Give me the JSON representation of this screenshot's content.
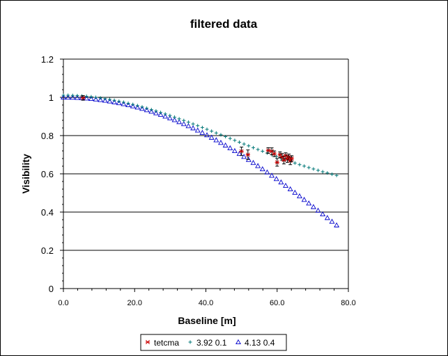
{
  "chart_data": {
    "type": "scatter",
    "title": "filtered data",
    "xlabel": "Baseline [m]",
    "ylabel": "Visibility",
    "xlim": [
      0,
      80
    ],
    "ylim": [
      0,
      1.2
    ],
    "xticks": [
      "0.0",
      "20.0",
      "40.0",
      "60.0",
      "80.0"
    ],
    "yticks": [
      "0",
      "0.2",
      "0.4",
      "0.6",
      "0.8",
      "1",
      "1.2"
    ],
    "grid": "horizontal major lines",
    "legend_position": "bottom",
    "series": [
      {
        "name": "tetcma",
        "marker": "asterisk",
        "color": "#cc0000",
        "errorbar_color": "#000000",
        "points": [
          {
            "x": 5.5,
            "y": 0.997,
            "err": 0.012
          },
          {
            "x": 50.0,
            "y": 0.718,
            "err": 0.022
          },
          {
            "x": 51.8,
            "y": 0.7,
            "err": 0.025
          },
          {
            "x": 57.5,
            "y": 0.722,
            "err": 0.015
          },
          {
            "x": 58.5,
            "y": 0.718,
            "err": 0.018
          },
          {
            "x": 59.2,
            "y": 0.705,
            "err": 0.015
          },
          {
            "x": 60.0,
            "y": 0.66,
            "err": 0.02
          },
          {
            "x": 60.8,
            "y": 0.7,
            "err": 0.015
          },
          {
            "x": 61.4,
            "y": 0.688,
            "err": 0.018
          },
          {
            "x": 61.9,
            "y": 0.672,
            "err": 0.02
          },
          {
            "x": 62.4,
            "y": 0.695,
            "err": 0.015
          },
          {
            "x": 62.9,
            "y": 0.678,
            "err": 0.018
          },
          {
            "x": 63.3,
            "y": 0.688,
            "err": 0.015
          },
          {
            "x": 63.7,
            "y": 0.668,
            "err": 0.02
          },
          {
            "x": 64.1,
            "y": 0.68,
            "err": 0.015
          }
        ]
      },
      {
        "name": "3.92 0.1",
        "marker": "plus",
        "color": "#007777",
        "x": [
          0,
          1.3,
          2.6,
          3.9,
          5.2,
          6.5,
          7.8,
          9.1,
          10.4,
          11.7,
          13,
          14.3,
          15.6,
          16.9,
          18.2,
          19.5,
          20.8,
          22.1,
          23.4,
          24.7,
          26,
          27.3,
          28.6,
          29.9,
          31.2,
          32.5,
          33.8,
          35.1,
          36.4,
          37.7,
          39,
          40.3,
          41.6,
          42.9,
          44.2,
          45.5,
          46.8,
          48.1,
          49.4,
          50.7,
          52,
          53.3,
          54.6,
          55.9,
          57.2,
          58.5,
          59.8,
          61.1,
          62.4,
          63.7,
          65,
          66.3,
          67.6,
          68.9,
          70.2,
          71.5,
          72.8,
          74.1,
          75.4,
          76.7
        ],
        "y": [
          1.0,
          0.9998,
          0.9991,
          0.998,
          0.9965,
          0.9945,
          0.9921,
          0.9892,
          0.9859,
          0.9822,
          0.9781,
          0.9737,
          0.9688,
          0.9636,
          0.958,
          0.9521,
          0.9459,
          0.9393,
          0.9324,
          0.9252,
          0.9178,
          0.9101,
          0.9021,
          0.8939,
          0.8855,
          0.8769,
          0.8681,
          0.8592,
          0.8501,
          0.8408,
          0.8315,
          0.822,
          0.8125,
          0.8029,
          0.7932,
          0.7836,
          0.7739,
          0.7642,
          0.7545,
          0.7449,
          0.7353,
          0.7258,
          0.7164,
          0.7071,
          0.6979,
          0.6888,
          0.6798,
          0.671,
          0.6624,
          0.6539,
          0.6456,
          0.6375,
          0.6296,
          0.6219,
          0.6145,
          0.6072,
          0.6002,
          0.5935,
          0.5869,
          0.5807
        ]
      },
      {
        "name": "4.13 0.4",
        "marker": "triangle",
        "color": "#0000cc",
        "x": [
          0,
          1.3,
          2.6,
          3.9,
          5.2,
          6.5,
          7.8,
          9.1,
          10.4,
          11.7,
          13,
          14.3,
          15.6,
          16.9,
          18.2,
          19.5,
          20.8,
          22.1,
          23.4,
          24.7,
          26,
          27.3,
          28.6,
          29.9,
          31.2,
          32.5,
          33.8,
          35.1,
          36.4,
          37.7,
          39,
          40.3,
          41.6,
          42.9,
          44.2,
          45.5,
          46.8,
          48.1,
          49.4,
          50.7,
          52,
          53.3,
          54.6,
          55.9,
          57.2,
          58.5,
          59.8,
          61.1,
          62.4,
          63.7,
          65,
          66.3,
          67.6,
          68.9,
          70.2,
          71.5,
          72.8,
          74.1,
          75.4,
          76.7
        ],
        "y": [
          1.0,
          0.9998,
          0.9992,
          0.9982,
          0.9968,
          0.995,
          0.9927,
          0.9901,
          0.987,
          0.9836,
          0.9797,
          0.9754,
          0.9707,
          0.9656,
          0.96,
          0.9541,
          0.9477,
          0.9409,
          0.9337,
          0.9261,
          0.918,
          0.9096,
          0.9007,
          0.8914,
          0.8818,
          0.8717,
          0.8612,
          0.8503,
          0.839,
          0.8273,
          0.8152,
          0.8027,
          0.7899,
          0.7766,
          0.763,
          0.749,
          0.7347,
          0.72,
          0.705,
          0.6896,
          0.6739,
          0.6579,
          0.6416,
          0.625,
          0.6082,
          0.591,
          0.5736,
          0.556,
          0.5382,
          0.5201,
          0.5019,
          0.4834,
          0.4648,
          0.4461,
          0.4272,
          0.4082,
          0.3891,
          0.3699,
          0.3506,
          0.3313
        ]
      }
    ]
  }
}
